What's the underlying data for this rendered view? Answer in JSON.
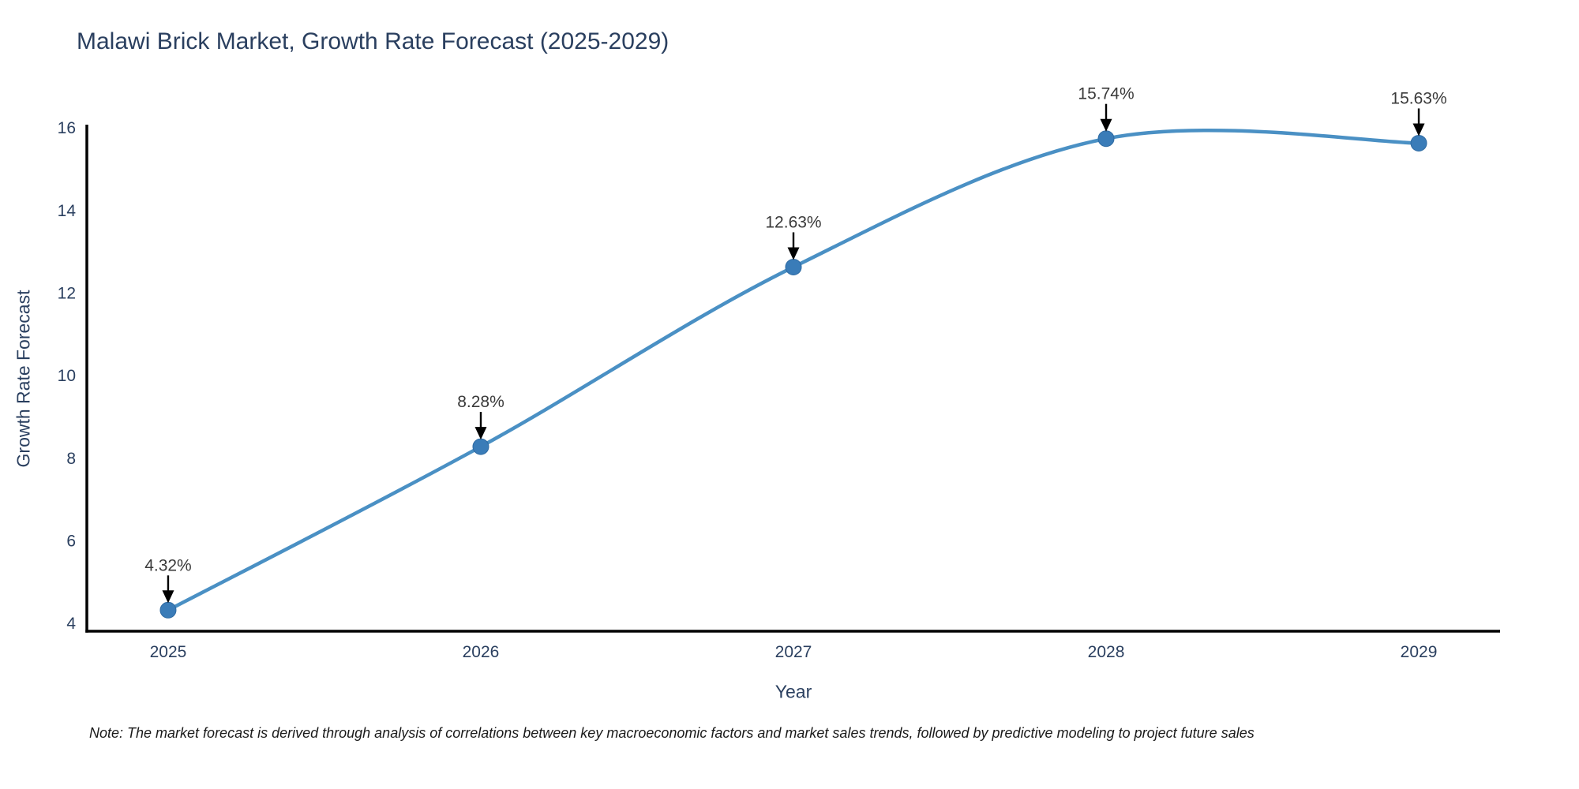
{
  "title": "Malawi Brick Market, Growth Rate Forecast (2025-2029)",
  "note": "Note: The market forecast is derived through analysis of correlations between key macroeconomic factors and market sales trends, followed by predictive modeling to project future sales",
  "colors": {
    "title_text": "#2a3f5f",
    "axis_text": "#2a3f5f",
    "axis_line": "#000000",
    "line": "#4a90c4",
    "marker_fill": "#3a7cb8",
    "marker_edge": "#2f6ba3",
    "annotation_text": "#3a3a3a",
    "arrow": "#000000",
    "background": "#ffffff"
  },
  "chart_data": {
    "type": "line",
    "title": "Malawi Brick Market, Growth Rate Forecast (2025-2029)",
    "xlabel": "Year",
    "ylabel": "Growth Rate Forecast",
    "x": [
      2025,
      2026,
      2027,
      2028,
      2029
    ],
    "values": [
      4.32,
      8.28,
      12.63,
      15.74,
      15.63
    ],
    "point_labels": [
      "4.32%",
      "8.28%",
      "12.63%",
      "15.74%",
      "15.63%"
    ],
    "yticks": [
      4,
      6,
      8,
      10,
      12,
      14,
      16
    ],
    "xlim": [
      2024.74,
      2029.26
    ],
    "ylim": [
      3.81,
      16.04
    ],
    "line_shape": "spline",
    "grid": false,
    "legend": false,
    "annotations": "value labels with downward arrows above each data point"
  }
}
